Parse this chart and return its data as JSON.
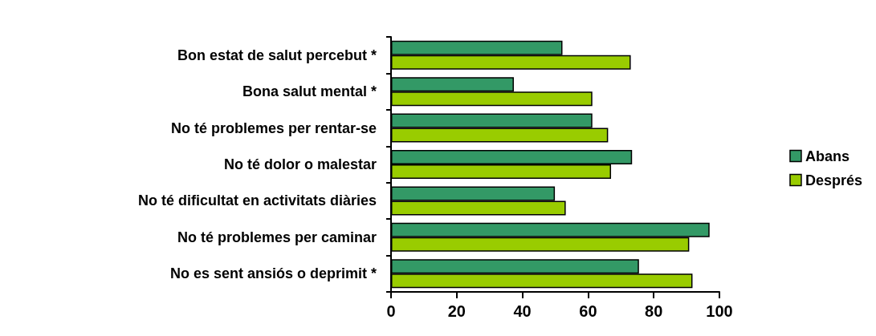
{
  "chart_data": {
    "type": "bar",
    "orientation": "horizontal",
    "categories": [
      "Bon estat de salut percebut *",
      "Bona salut mental *",
      "No té problemes per rentar-se",
      "No té dolor o malestar",
      "No té dificultat en activitats diàries",
      "No té problemes per caminar",
      "No es sent ansiós o deprimit *"
    ],
    "series": [
      {
        "name": "Abans",
        "color": "#339966",
        "values": [
          52.2,
          37.4,
          61.3,
          73.4,
          49.9,
          97.0,
          75.5
        ]
      },
      {
        "name": "Després",
        "color": "#99cc00",
        "values": [
          73.0,
          61.3,
          66.1,
          67.0,
          53.2,
          90.8,
          91.8
        ]
      }
    ],
    "xlim": [
      0,
      100
    ],
    "xticks": [
      0,
      20,
      40,
      60,
      80,
      100
    ],
    "grid": false,
    "legend": "right"
  }
}
